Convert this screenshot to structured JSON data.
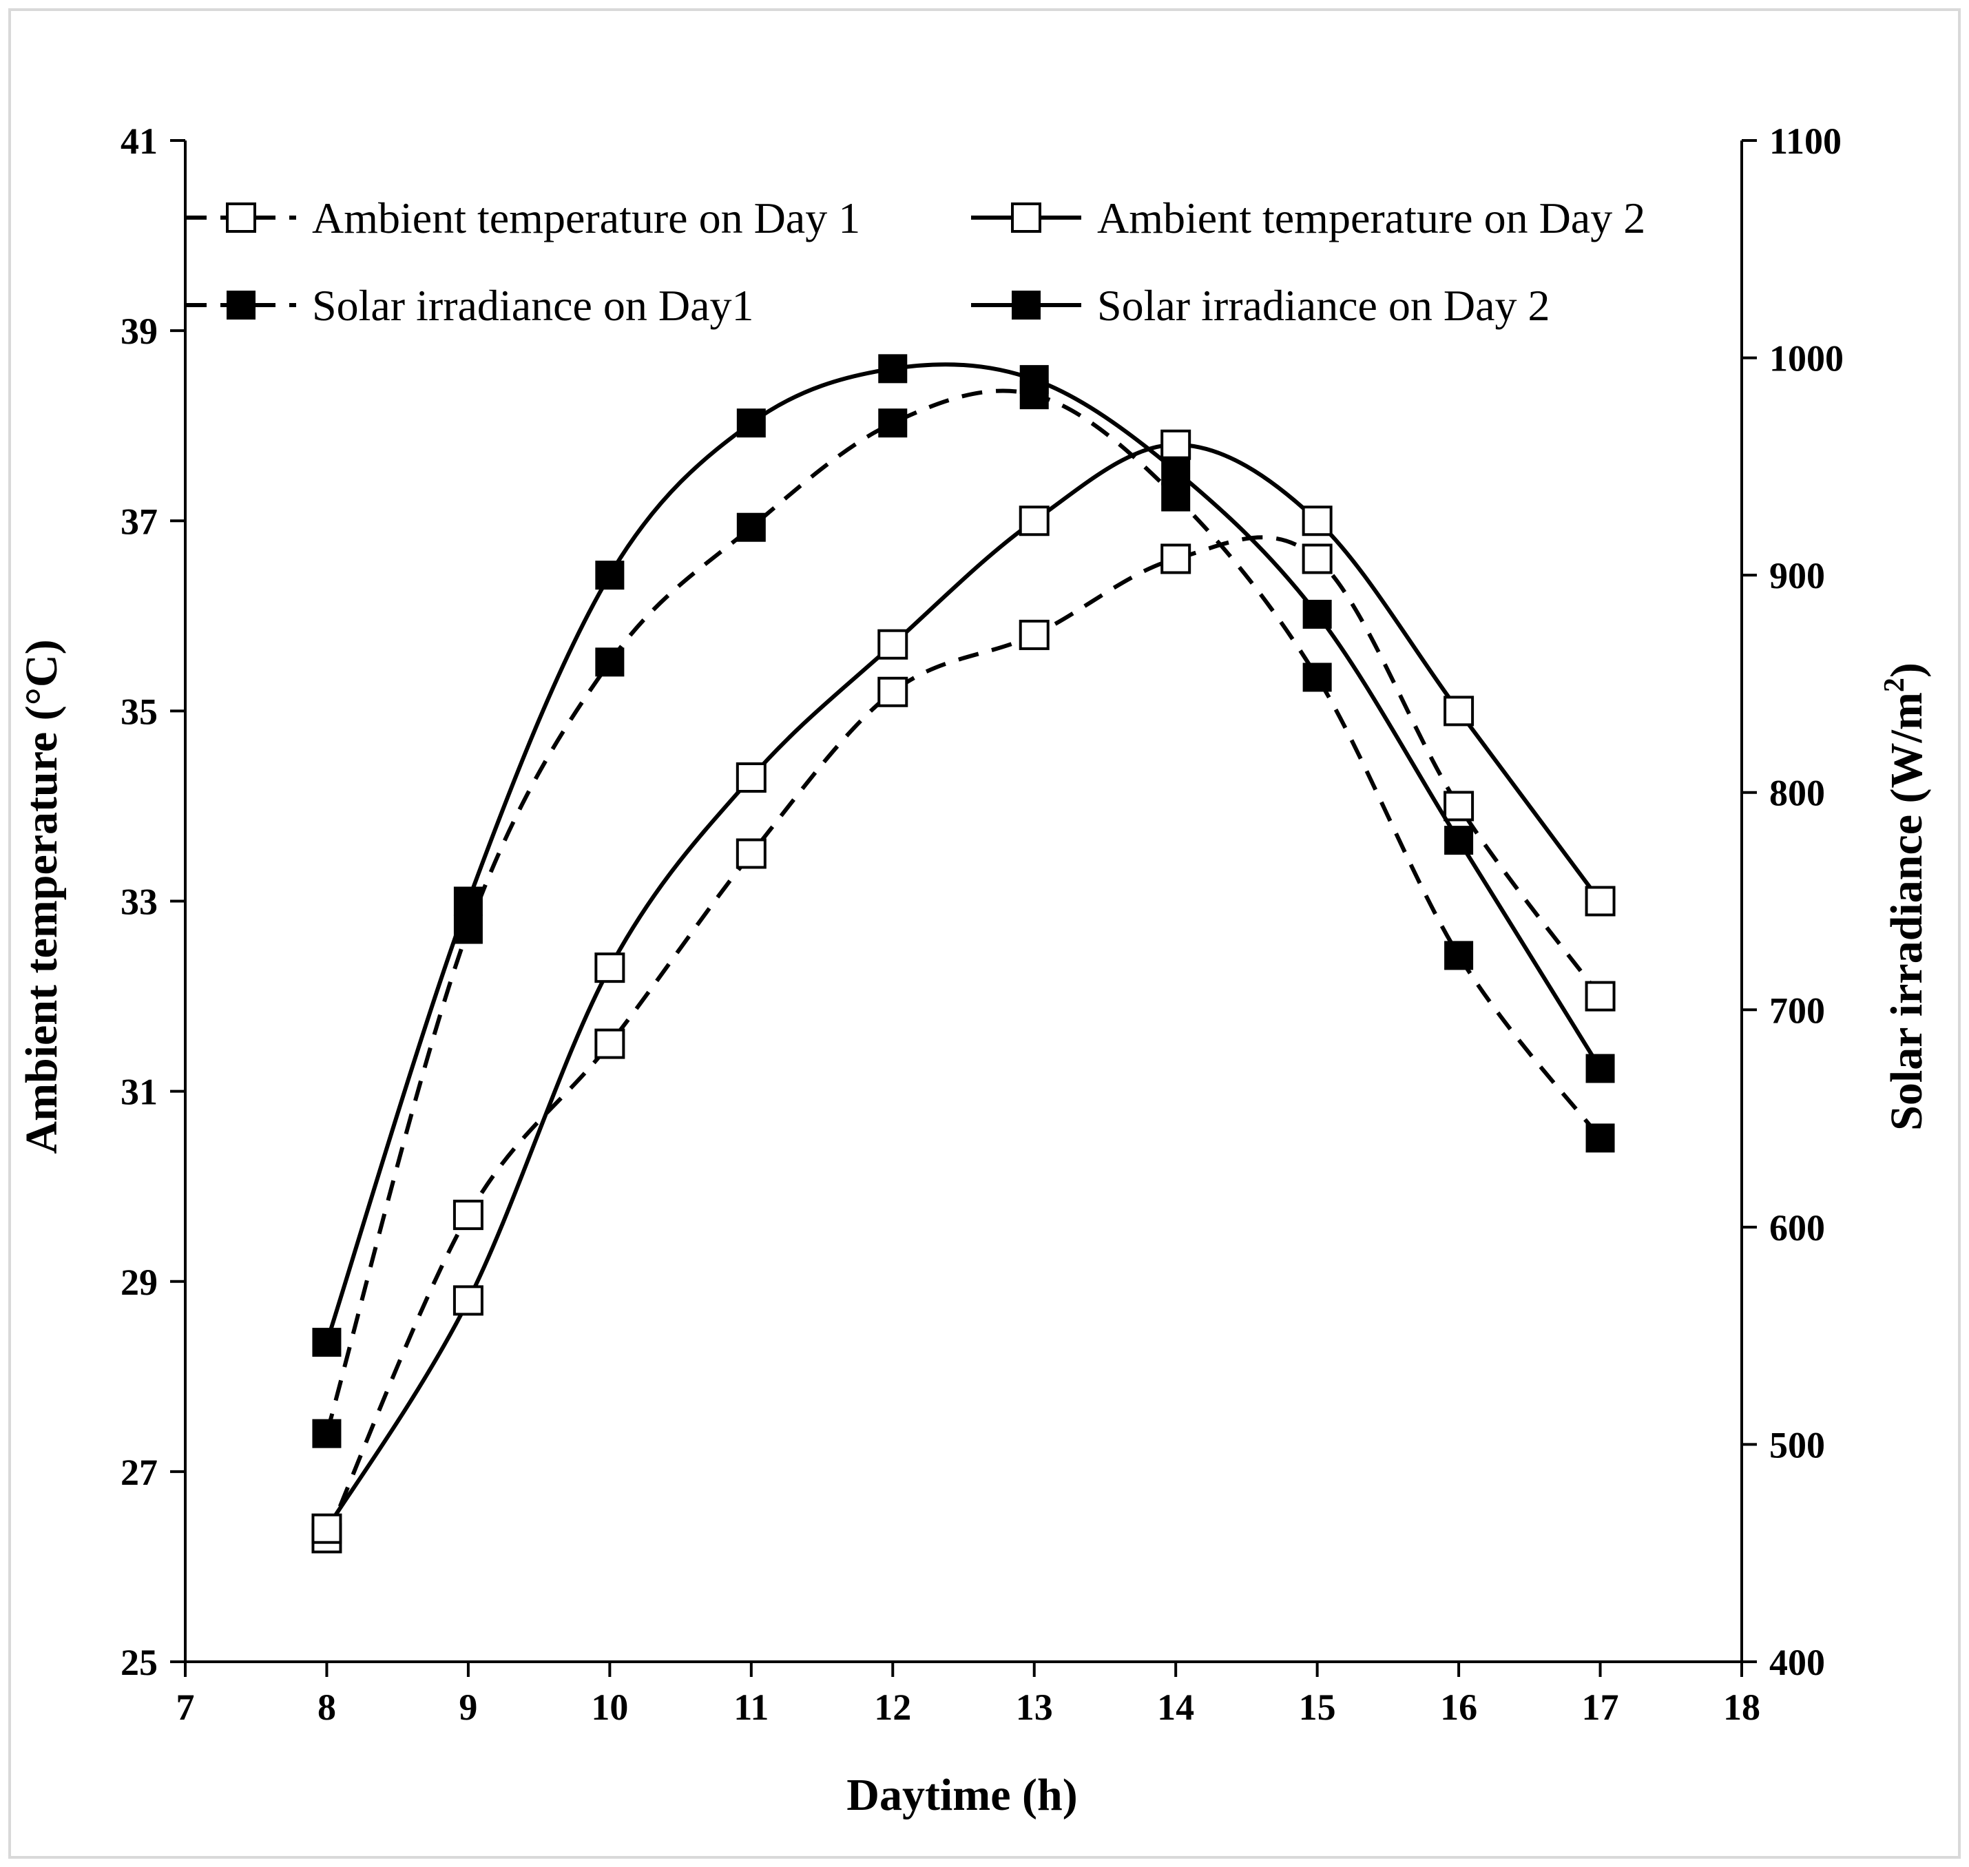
{
  "chart_data": {
    "type": "line",
    "title": "",
    "xlabel": "Daytime (h)",
    "ylabel": "Ambient temperature (°C)",
    "y2label_main": "Solar irradiance (W/m",
    "y2label_sup": "2",
    "y2label_close": ")",
    "xlim": [
      7,
      18
    ],
    "ylim": [
      25,
      41
    ],
    "y2lim": [
      400,
      1100
    ],
    "xticks": [
      "7",
      "8",
      "9",
      "10",
      "11",
      "12",
      "13",
      "14",
      "15",
      "16",
      "17",
      "18"
    ],
    "yticks": [
      "25",
      "27",
      "29",
      "31",
      "33",
      "35",
      "37",
      "39",
      "41"
    ],
    "y2ticks": [
      "400",
      "500",
      "600",
      "700",
      "800",
      "900",
      "1000",
      "1100"
    ],
    "grid": false,
    "legend_position": "top",
    "x": [
      8,
      9,
      10,
      11,
      12,
      13,
      14,
      15,
      16,
      17
    ],
    "series": [
      {
        "name": "Ambient temperature on Day 1",
        "axis": "left",
        "line": "dashed",
        "marker": "open-square",
        "values": [
          26.3,
          29.7,
          31.5,
          33.5,
          35.2,
          35.8,
          36.6,
          36.6,
          34.0,
          32.0
        ]
      },
      {
        "name": "Ambient temperature on Day 2",
        "axis": "left",
        "line": "solid",
        "marker": "open-square",
        "values": [
          26.4,
          28.8,
          32.3,
          34.3,
          35.7,
          37.0,
          37.8,
          37.0,
          35.0,
          33.0
        ]
      },
      {
        "name": "Solar irradiance on Day1",
        "axis": "right",
        "line": "dashed",
        "marker": "filled-square",
        "values": [
          505,
          737,
          860,
          922,
          970,
          983,
          936,
          853,
          725,
          641
        ]
      },
      {
        "name": "Solar irradiance on Day 2",
        "axis": "right",
        "line": "solid",
        "marker": "filled-square",
        "values": [
          547,
          750,
          900,
          970,
          995,
          990,
          948,
          882,
          778,
          673
        ]
      }
    ]
  }
}
